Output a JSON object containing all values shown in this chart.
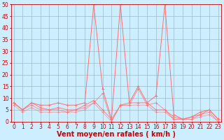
{
  "xlabel": "Vent moyen/en rafales ( km/h )",
  "x_values": [
    0,
    1,
    2,
    3,
    4,
    5,
    6,
    7,
    8,
    9,
    10,
    11,
    12,
    13,
    14,
    15,
    16,
    17,
    18,
    19,
    20,
    21,
    22,
    23
  ],
  "x_labels": [
    "0",
    "1",
    "2",
    "3",
    "4",
    "5",
    "6",
    "7",
    "8",
    "9",
    "10",
    "11",
    "12",
    "13",
    "14",
    "15",
    "16",
    "17",
    "18",
    "19",
    "20",
    "21",
    "22",
    "23"
  ],
  "series": [
    [
      8,
      5,
      8,
      7,
      7,
      8,
      7,
      7,
      8,
      50,
      14,
      1,
      50,
      8,
      15,
      8,
      11,
      50,
      3,
      1,
      2,
      4,
      5,
      1
    ],
    [
      8,
      5,
      8,
      6,
      5,
      6,
      5,
      5,
      7,
      9,
      5,
      1,
      7,
      8,
      8,
      8,
      5,
      5,
      2,
      1,
      2,
      3,
      5,
      1
    ],
    [
      8,
      5,
      7,
      5,
      5,
      5,
      4,
      5,
      6,
      8,
      12,
      0,
      7,
      7,
      14,
      7,
      8,
      5,
      1,
      1,
      1,
      3,
      4,
      0
    ],
    [
      7,
      4,
      6,
      4,
      4,
      4,
      4,
      4,
      5,
      8,
      4,
      0,
      7,
      7,
      7,
      7,
      4,
      4,
      1,
      1,
      1,
      2,
      3,
      0
    ]
  ],
  "alphas": [
    1.0,
    0.85,
    0.7,
    0.55
  ],
  "bg_color": "#cceeff",
  "line_color": "#ff7070",
  "grid_color": "#99bbcc",
  "ylim": [
    0,
    50
  ],
  "yticks": [
    0,
    5,
    10,
    15,
    20,
    25,
    30,
    35,
    40,
    45,
    50
  ],
  "marker": "+",
  "linewidth": 0.7,
  "markersize": 3,
  "xlabel_color": "#cc0000",
  "xlabel_fontsize": 7,
  "tick_fontsize": 5.5,
  "tick_color": "#cc0000",
  "fig_width": 3.2,
  "fig_height": 2.0,
  "dpi": 100
}
